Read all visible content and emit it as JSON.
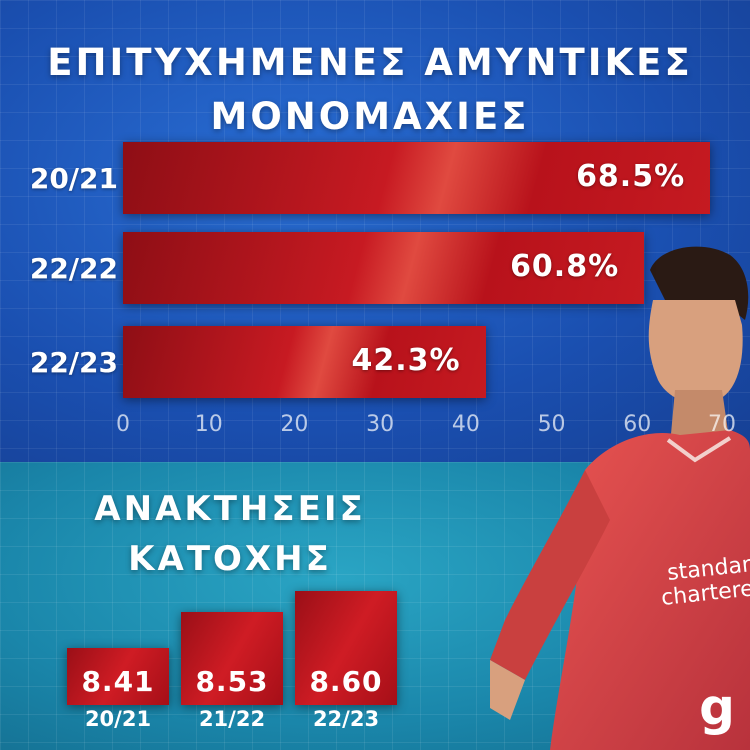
{
  "chart_data": [
    {
      "type": "bar",
      "orientation": "horizontal",
      "title": "ΕΠΙΤΥΧΗΜΕΝΕΣ ΑΜΥΝΤΙΚΕΣ ΜΟΝΟΜΑΧΙΕΣ",
      "title_lines": [
        "ΕΠΙΤΥΧΗΜΕΝΕΣ ΑΜΥΝΤΙΚΕΣ",
        "ΜΟΝΟΜΑΧΙΕΣ"
      ],
      "categories": [
        "20/21",
        "22/22",
        "22/23"
      ],
      "values": [
        68.5,
        60.8,
        42.3
      ],
      "value_labels": [
        "68.5%",
        "60.8%",
        "42.3%"
      ],
      "xlim": [
        0,
        70
      ],
      "ticks": [
        "0",
        "10",
        "20",
        "30",
        "40",
        "50",
        "60",
        "70"
      ],
      "tick_values": [
        0,
        10,
        20,
        30,
        40,
        50,
        60,
        70
      ],
      "grid": true
    },
    {
      "type": "bar",
      "orientation": "vertical",
      "title": "ΑΝΑΚΤΗΣΕΙΣ ΚΑΤΟΧΗΣ",
      "title_lines": [
        "ΑΝΑΚΤΗΣΕΙΣ",
        "ΚΑΤΟΧΗΣ"
      ],
      "categories": [
        "20/21",
        "21/22",
        "22/23"
      ],
      "values": [
        8.41,
        8.53,
        8.6
      ],
      "value_labels": [
        "8.41",
        "8.53",
        "8.60"
      ]
    }
  ],
  "sponsor_text": [
    "standard",
    "chartered"
  ],
  "logo_text": "g",
  "colors": {
    "top_bg": "#1c56b8",
    "bottom_bg": "#1a86aa",
    "bar": "#c71a22",
    "shirt": "#d8403f"
  }
}
